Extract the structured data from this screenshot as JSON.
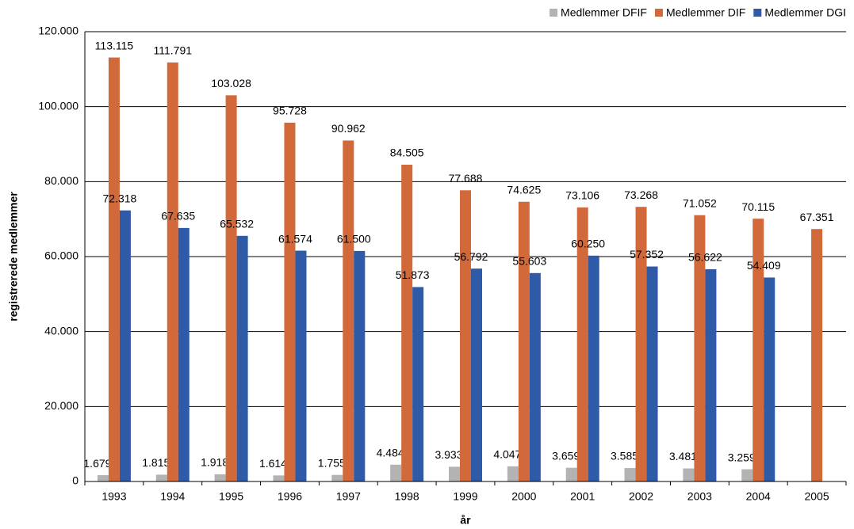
{
  "chart_data": {
    "type": "bar",
    "x_label": "år",
    "y_label": "registrerede medlemmer",
    "categories": [
      "1993",
      "1994",
      "1995",
      "1996",
      "1997",
      "1998",
      "1999",
      "2000",
      "2001",
      "2002",
      "2003",
      "2004",
      "2005"
    ],
    "series": [
      {
        "name": "Medlemmer DFIF",
        "color": "#b3b3b3",
        "values": [
          1679,
          1815,
          1918,
          1614,
          1755,
          4484,
          3933,
          4047,
          3659,
          3585,
          3481,
          3259,
          null
        ],
        "value_labels": [
          "1.679",
          "1.815",
          "1.918",
          "1.614",
          "1.755",
          "4.484",
          "3.933",
          "4.047",
          "3.659",
          "3.585",
          "3.481",
          "3.259",
          null
        ]
      },
      {
        "name": "Medlemmer DIF",
        "color": "#d2693a",
        "values": [
          113115,
          111791,
          103028,
          95728,
          90962,
          84505,
          77688,
          74625,
          73106,
          73268,
          71052,
          70115,
          67351
        ],
        "value_labels": [
          "113.115",
          "111.791",
          "103.028",
          "95.728",
          "90.962",
          "84.505",
          "77.688",
          "74.625",
          "73.106",
          "73.268",
          "71.052",
          "70.115",
          "67.351"
        ]
      },
      {
        "name": "Medlemmer DGI",
        "color": "#2f5aa8",
        "values": [
          72318,
          67635,
          65532,
          61574,
          61500,
          51873,
          56792,
          55603,
          60250,
          57352,
          56622,
          54409,
          null
        ],
        "value_labels": [
          "72.318",
          "67.635",
          "65.532",
          "61.574",
          "61.500",
          "51.873",
          "56.792",
          "55.603",
          "60.250",
          "57.352",
          "56.622",
          "54.409",
          null
        ]
      }
    ],
    "ylim": [
      0,
      120000
    ],
    "yticks": [
      0,
      {
        "value": 20000,
        "label": "20.000"
      },
      {
        "value": 40000,
        "label": "40.000"
      },
      {
        "value": 60000,
        "label": "60.000"
      },
      {
        "value": 80000,
        "label": "80.000"
      },
      {
        "value": 100000,
        "label": "100.000"
      },
      {
        "value": 120000,
        "label": "120.000"
      }
    ],
    "grid": true,
    "legend": "top-right"
  }
}
